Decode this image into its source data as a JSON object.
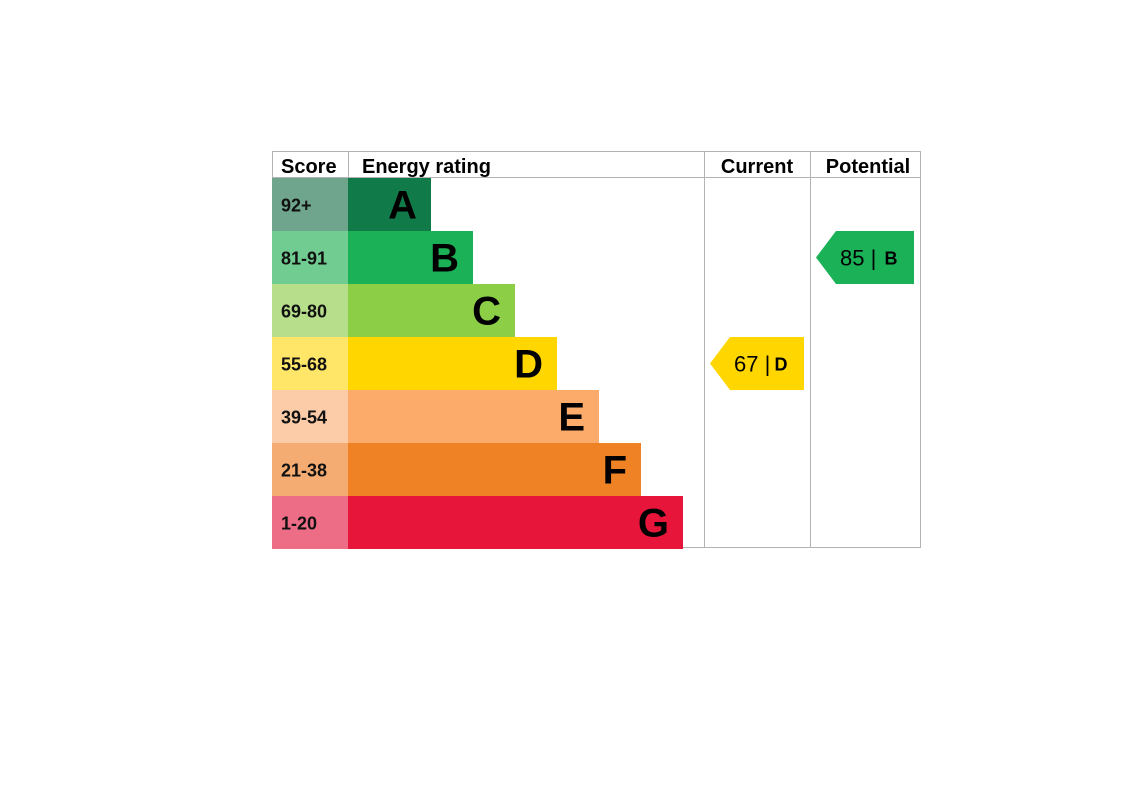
{
  "headers": {
    "score": "Score",
    "energy_rating": "Energy rating",
    "current": "Current",
    "potential": "Potential"
  },
  "chart_data": {
    "type": "bar",
    "categories": [
      "A",
      "B",
      "C",
      "D",
      "E",
      "F",
      "G"
    ],
    "score_ranges": [
      "92+",
      "81-91",
      "69-80",
      "55-68",
      "39-54",
      "21-38",
      "1-20"
    ],
    "band_colors": [
      "#117a49",
      "#1bb157",
      "#8cce46",
      "#ffd600",
      "#fcab6b",
      "#ee8224",
      "#e8153b"
    ],
    "score_cell_colors": [
      "#70a58d",
      "#70cc90",
      "#b7df8b",
      "#ffe669",
      "#fccca8",
      "#f4ac72",
      "#ed6d87"
    ],
    "current": {
      "score": 67,
      "band": "D",
      "label": "67 |",
      "color": "#ffd600"
    },
    "potential": {
      "score": 85,
      "band": "B",
      "label": "85 |",
      "color": "#1bb157"
    }
  }
}
